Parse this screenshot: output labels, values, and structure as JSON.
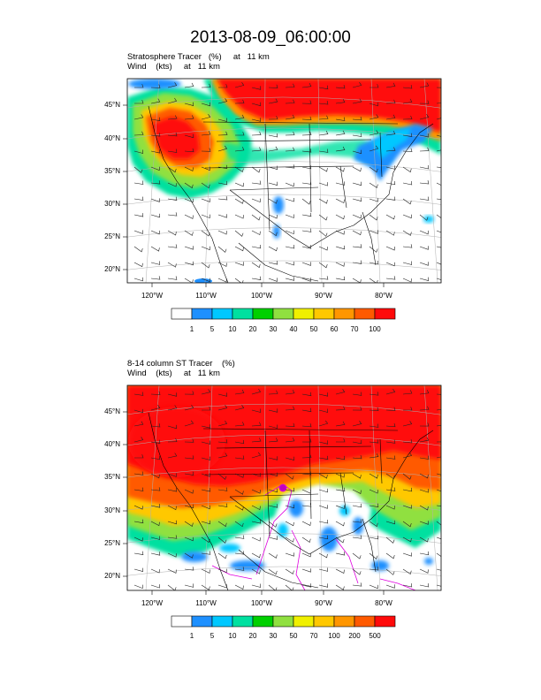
{
  "main_title": "2013-08-09_06:00:00",
  "panels": [
    {
      "title_line1": "Stratosphere Tracer   (%)     at   11 km",
      "title_line2": "Wind    (kts)     at   11 km",
      "lat_labels": [
        "45°N",
        "40°N",
        "35°N",
        "30°N",
        "25°N",
        "20°N"
      ],
      "lon_labels": [
        "120°W",
        "110°W",
        "100°W",
        "90°W",
        "80°W"
      ],
      "colorbar_labels": [
        "1",
        "5",
        "10",
        "20",
        "30",
        "40",
        "50",
        "60",
        "70",
        "100"
      ]
    },
    {
      "title_line1": "8-14 column ST Tracer    (%)",
      "title_line2": "Wind    (kts)     at   11 km",
      "lat_labels": [
        "45°N",
        "40°N",
        "35°N",
        "30°N",
        "25°N",
        "20°N"
      ],
      "lon_labels": [
        "120°W",
        "110°W",
        "100°W",
        "90°W",
        "80°W"
      ],
      "colorbar_labels": [
        "1",
        "5",
        "10",
        "20",
        "30",
        "50",
        "70",
        "100",
        "200",
        "500"
      ]
    }
  ],
  "colorbar_colors": [
    "#ffffff",
    "#1e90ff",
    "#00c8ff",
    "#00e0a0",
    "#00d000",
    "#90e040",
    "#f0f000",
    "#ffc800",
    "#ff9600",
    "#ff5a00",
    "#ff0a0a"
  ]
}
